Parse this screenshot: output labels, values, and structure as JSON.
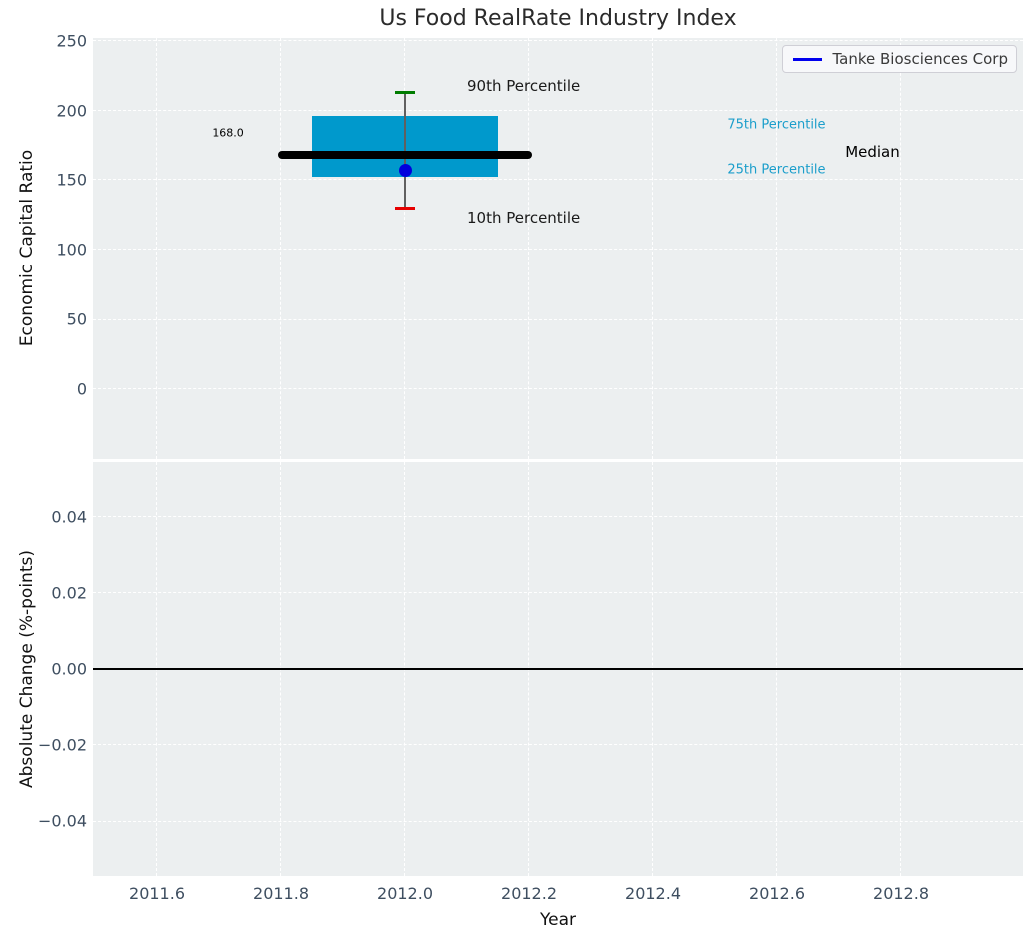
{
  "figure_title": "Us Food RealRate Industry Index",
  "chart_data": [
    {
      "type": "boxplot",
      "title": "Us Food RealRate Industry Index",
      "ylabel": "Economic Capital Ratio",
      "ylim": [
        -50,
        252
      ],
      "xlim": [
        2011.5,
        2013.0
      ],
      "grid": "white dashed, on",
      "legend": {
        "label": "Tanke Biosciences Corp",
        "position": "upper right",
        "line_color": "#0000ee"
      },
      "yticks": [
        {
          "label": "250",
          "value": 250
        },
        {
          "label": "200",
          "value": 200
        },
        {
          "label": "150",
          "value": 150
        },
        {
          "label": "100",
          "value": 100
        },
        {
          "label": "50",
          "value": 50
        },
        {
          "label": "0",
          "value": 0
        }
      ],
      "box": {
        "x_center": 2012.0,
        "x_left": 2011.85,
        "x_right": 2012.15,
        "median_line_extent": [
          2011.795,
          2012.205
        ],
        "p10": 130,
        "p25": 152,
        "median": 168.0,
        "p75": 196,
        "p90": 213,
        "company_point": {
          "name": "Tanke Biosciences Corp",
          "x": 2012.0,
          "value": 157
        }
      },
      "annotations": [
        {
          "id": "median-value",
          "text": "168.0",
          "x": 2011.74,
          "y": 184,
          "color": "#000000",
          "size": 11,
          "ha": "right"
        },
        {
          "id": "p90-label",
          "text": "90th Percentile",
          "x": 2012.1,
          "y": 218,
          "color": "#1a1a1a",
          "size": 15,
          "ha": "left"
        },
        {
          "id": "p10-label",
          "text": "10th Percentile",
          "x": 2012.1,
          "y": 123,
          "color": "#1a1a1a",
          "size": 15,
          "ha": "left"
        },
        {
          "id": "p75-label",
          "text": "75th Percentile",
          "x": 2012.52,
          "y": 190,
          "color": "#1b9ecb",
          "size": 13,
          "ha": "left"
        },
        {
          "id": "p25-label",
          "text": "25th Percentile",
          "x": 2012.52,
          "y": 157,
          "color": "#1b9ecb",
          "size": 13,
          "ha": "left"
        },
        {
          "id": "median-label",
          "text": "Median",
          "x": 2012.71,
          "y": 170,
          "color": "#000000",
          "size": 15,
          "ha": "left"
        }
      ],
      "colors": {
        "box": "#0099cc",
        "median": "#000000",
        "whisker": "#606060",
        "cap_top": "#007c00",
        "cap_bottom": "#e60000",
        "dot": "#0000dd",
        "axes_bg": "#eceff0"
      }
    },
    {
      "type": "line",
      "ylabel": "Absolute Change (%-points)",
      "xlabel": "Year",
      "ylim": [
        -0.054,
        0.054
      ],
      "grid": "white dashed, on",
      "zero_line": 0.0,
      "series": [],
      "yticks": [
        {
          "label": "0.04",
          "value": 0.04
        },
        {
          "label": "0.02",
          "value": 0.02
        },
        {
          "label": "0.00",
          "value": 0.0
        },
        {
          "label": "−0.02",
          "value": -0.02
        },
        {
          "label": "−0.04",
          "value": -0.04
        }
      ],
      "xticks": [
        {
          "label": "2011.6",
          "value": 2011.6
        },
        {
          "label": "2011.8",
          "value": 2011.8
        },
        {
          "label": "2012.0",
          "value": 2012.0
        },
        {
          "label": "2012.2",
          "value": 2012.2
        },
        {
          "label": "2012.4",
          "value": 2012.4
        },
        {
          "label": "2012.6",
          "value": 2012.6
        },
        {
          "label": "2012.8",
          "value": 2012.8
        }
      ]
    }
  ]
}
